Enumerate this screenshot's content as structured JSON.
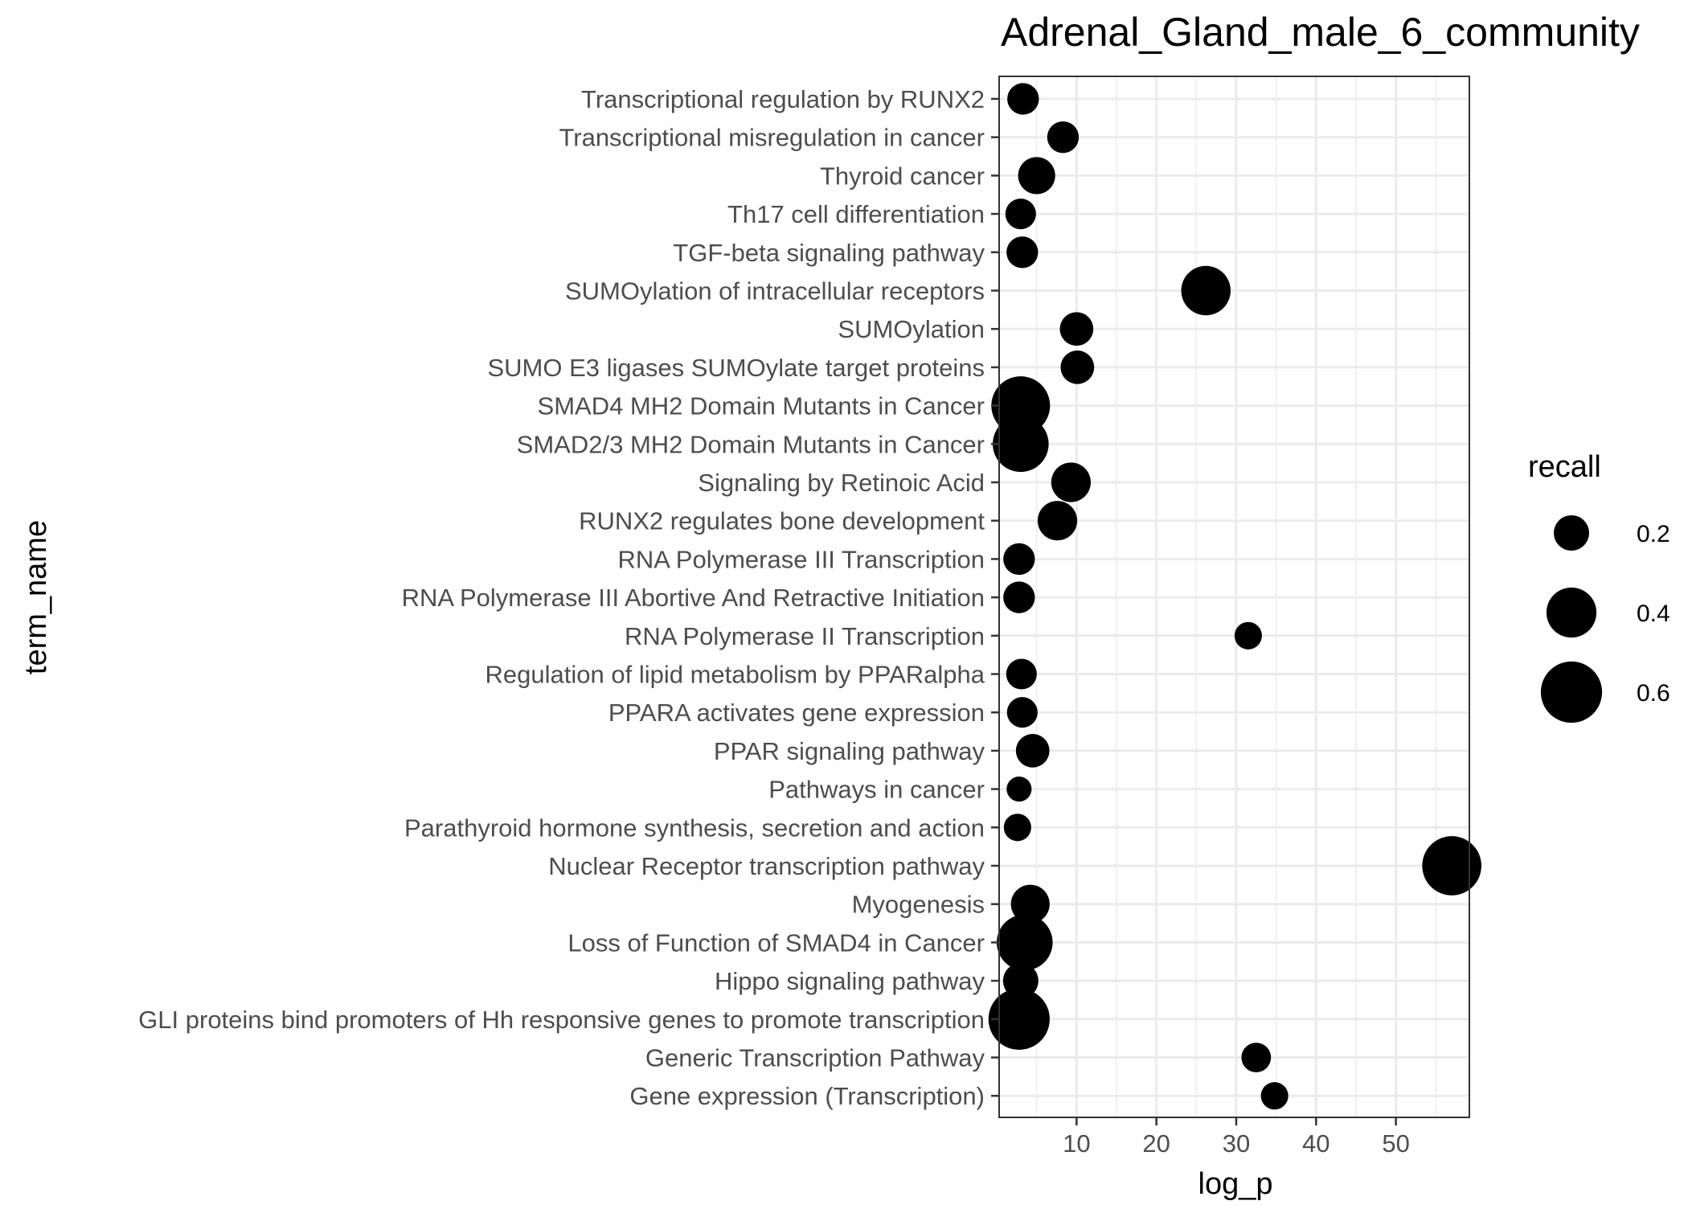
{
  "chart_data": {
    "type": "scatter",
    "title": "Adrenal_Gland_male_6_community",
    "xlabel": "log_p",
    "ylabel": "term_name",
    "xlim": [
      0.3,
      59.2
    ],
    "x_ticks": [
      10,
      20,
      30,
      40,
      50
    ],
    "grid": true,
    "legend": {
      "title": "recall",
      "position": "right",
      "breaks": [
        0.2,
        0.4,
        0.6
      ],
      "labels": [
        "0.2",
        "0.4",
        "0.6"
      ]
    },
    "categories": [
      "Transcriptional regulation by RUNX2",
      "Transcriptional misregulation in cancer",
      "Thyroid cancer",
      "Th17 cell differentiation",
      "TGF-beta signaling pathway",
      "SUMOylation of intracellular receptors",
      "SUMOylation",
      "SUMO E3 ligases SUMOylate target proteins",
      "SMAD4 MH2 Domain Mutants in Cancer",
      "SMAD2/3 MH2 Domain Mutants in Cancer",
      "Signaling by Retinoic Acid",
      "RUNX2 regulates bone development",
      "RNA Polymerase III Transcription",
      "RNA Polymerase III Abortive And Retractive Initiation",
      "RNA Polymerase II Transcription",
      "Regulation of lipid metabolism by PPARalpha",
      "PPARA activates gene expression",
      "PPAR signaling pathway",
      "Pathways in cancer",
      "Parathyroid hormone synthesis, secretion and action",
      "Nuclear Receptor transcription pathway",
      "Myogenesis",
      "Loss of Function of SMAD4 in Cancer",
      "Hippo signaling pathway",
      "GLI proteins bind promoters of Hh responsive genes to promote transcription",
      "Generic Transcription Pathway",
      "Gene expression (Transcription)"
    ],
    "points": [
      {
        "term": "Transcriptional regulation by RUNX2",
        "log_p": 3.3,
        "recall": 0.16
      },
      {
        "term": "Transcriptional misregulation in cancer",
        "log_p": 8.3,
        "recall": 0.16
      },
      {
        "term": "Thyroid cancer",
        "log_p": 5.0,
        "recall": 0.22
      },
      {
        "term": "Th17 cell differentiation",
        "log_p": 3.0,
        "recall": 0.15
      },
      {
        "term": "TGF-beta signaling pathway",
        "log_p": 3.2,
        "recall": 0.16
      },
      {
        "term": "SUMOylation of intracellular receptors",
        "log_p": 26.2,
        "recall": 0.39
      },
      {
        "term": "SUMOylation",
        "log_p": 10.0,
        "recall": 0.18
      },
      {
        "term": "SUMO E3 ligases SUMOylate target proteins",
        "log_p": 10.1,
        "recall": 0.18
      },
      {
        "term": "SMAD4 MH2 Domain Mutants in Cancer",
        "log_p": 3.0,
        "recall": 0.55
      },
      {
        "term": "SMAD2/3 MH2 Domain Mutants in Cancer",
        "log_p": 3.0,
        "recall": 0.5
      },
      {
        "term": "Signaling by Retinoic Acid",
        "log_p": 9.3,
        "recall": 0.25
      },
      {
        "term": "RUNX2 regulates bone development",
        "log_p": 7.6,
        "recall": 0.25
      },
      {
        "term": "RNA Polymerase III Transcription",
        "log_p": 2.8,
        "recall": 0.16
      },
      {
        "term": "RNA Polymerase III Abortive And Retractive Initiation",
        "log_p": 2.8,
        "recall": 0.16
      },
      {
        "term": "RNA Polymerase II Transcription",
        "log_p": 31.5,
        "recall": 0.12
      },
      {
        "term": "Regulation of lipid metabolism by PPARalpha",
        "log_p": 3.1,
        "recall": 0.15
      },
      {
        "term": "PPARA activates gene expression",
        "log_p": 3.2,
        "recall": 0.15
      },
      {
        "term": "PPAR signaling pathway",
        "log_p": 4.5,
        "recall": 0.18
      },
      {
        "term": "Pathways in cancer",
        "log_p": 2.8,
        "recall": 0.1
      },
      {
        "term": "Parathyroid hormone synthesis, secretion and action",
        "log_p": 2.6,
        "recall": 0.12
      },
      {
        "term": "Nuclear Receptor transcription pathway",
        "log_p": 57.0,
        "recall": 0.56
      },
      {
        "term": "Myogenesis",
        "log_p": 4.2,
        "recall": 0.24
      },
      {
        "term": "Loss of Function of SMAD4 in Cancer",
        "log_p": 3.5,
        "recall": 0.5
      },
      {
        "term": "Hippo signaling pathway",
        "log_p": 3.0,
        "recall": 0.2
      },
      {
        "term": "GLI proteins bind promoters of Hh responsive genes to promote transcription",
        "log_p": 2.8,
        "recall": 0.6
      },
      {
        "term": "Generic Transcription Pathway",
        "log_p": 32.5,
        "recall": 0.14
      },
      {
        "term": "Gene expression (Transcription)",
        "log_p": 34.8,
        "recall": 0.12
      }
    ]
  }
}
